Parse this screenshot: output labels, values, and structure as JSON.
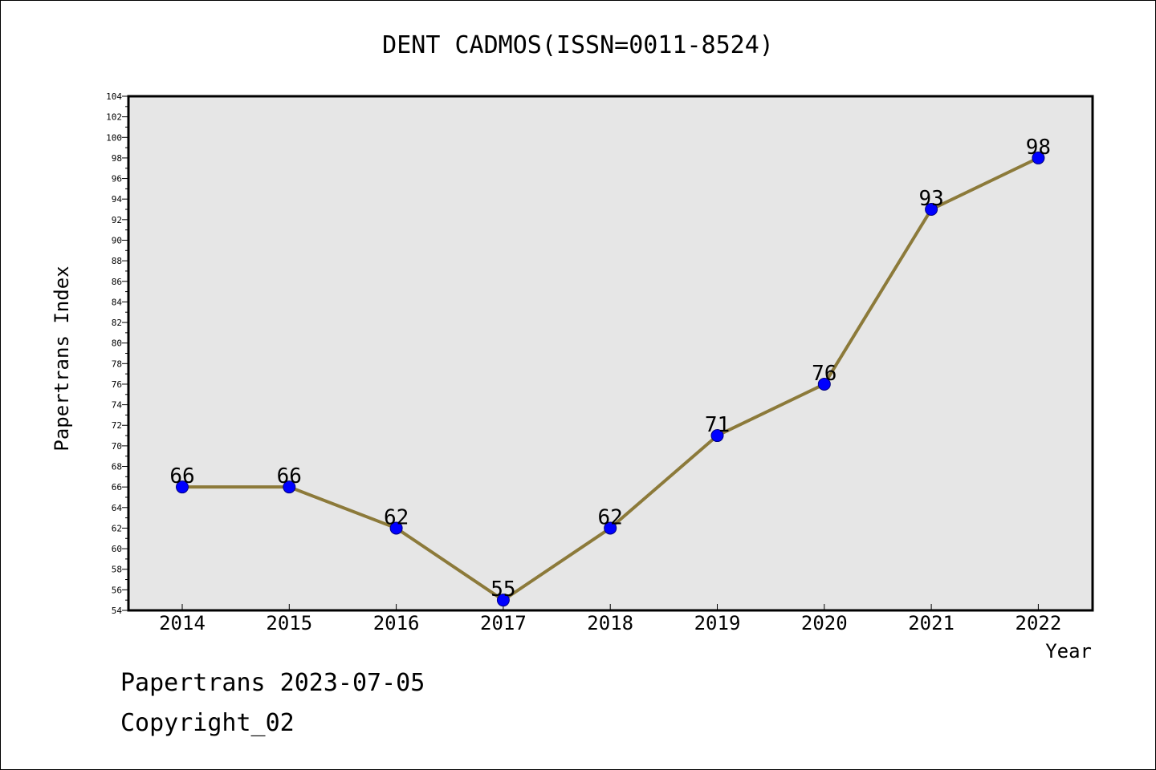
{
  "chart_data": {
    "type": "line",
    "title": "DENT CADMOS(ISSN=0011-8524)",
    "xlabel": "Year",
    "ylabel": "Papertrans Index",
    "categories": [
      "2014",
      "2015",
      "2016",
      "2017",
      "2018",
      "2019",
      "2020",
      "2021",
      "2022"
    ],
    "series": [
      {
        "name": "Papertrans Index",
        "values": [
          66,
          66,
          62,
          55,
          62,
          71,
          76,
          93,
          98
        ]
      }
    ],
    "data_labels": [
      "66",
      "66",
      "62",
      "55",
      "62",
      "71",
      "76",
      "93",
      "98"
    ],
    "ylim": [
      54,
      104
    ],
    "ytick_step": 2,
    "yticks": [
      "54",
      "56",
      "58",
      "60",
      "62",
      "64",
      "66",
      "68",
      "70",
      "72",
      "74",
      "76",
      "78",
      "80",
      "82",
      "84",
      "86",
      "88",
      "90",
      "92",
      "94",
      "96",
      "98",
      "100",
      "102",
      "104"
    ],
    "grid": false,
    "colors": {
      "line": "#8c7a3a",
      "marker_fill": "#0000ff",
      "marker_edge": "#000080",
      "plot_background": "#e6e6e6"
    }
  },
  "footer": {
    "date_text": "Papertrans 2023-07-05",
    "copyright_text": "Copyright_02"
  }
}
